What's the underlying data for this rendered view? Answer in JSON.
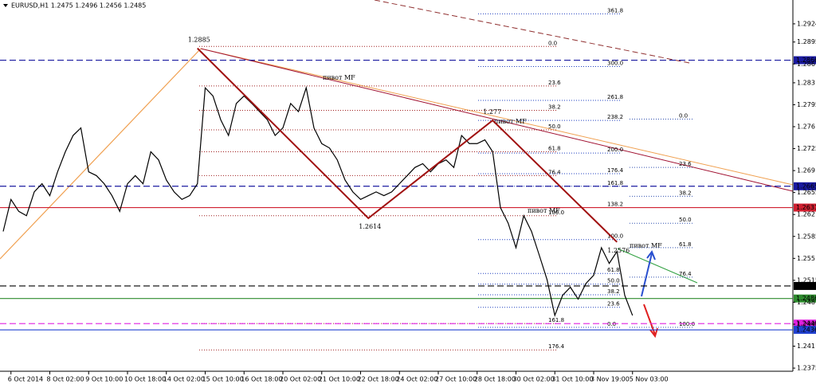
{
  "chart_data": {
    "type": "line",
    "title": "EURUSD,H1 1.2475 1.2496 1.2456 1.2485",
    "categories": [
      null,
      "6 Oct 2014",
      null,
      null,
      null,
      null,
      "8 Oct 02:00",
      null,
      null,
      null,
      null,
      "9 Oct 10:00",
      null,
      null,
      null,
      null,
      "10 Oct 18:00",
      null,
      null,
      null,
      null,
      "14 Oct 02:00",
      null,
      null,
      null,
      null,
      "15 Oct 10:00",
      null,
      null,
      null,
      null,
      "16 Oct 18:00",
      null,
      null,
      null,
      null,
      "20 Oct 02:00",
      null,
      null,
      null,
      null,
      "21 Oct 10:00",
      null,
      null,
      null,
      null,
      "22 Oct 18:00",
      null,
      null,
      null,
      null,
      "24 Oct 02:00",
      null,
      null,
      null,
      null,
      "27 Oct 10:00",
      null,
      null,
      null,
      null,
      "28 Oct 18:00",
      null,
      null,
      null,
      null,
      "30 Oct 02:00",
      null,
      null,
      null,
      null,
      "31 Oct 10:00",
      null,
      null,
      null,
      null,
      "3 Nov 19:00",
      null,
      null,
      null,
      null,
      "5 Nov 03:00"
    ],
    "series": [
      {
        "color": "#000000",
        "values": [
          1.2593,
          1.2644,
          1.2625,
          1.2618,
          1.2656,
          1.2669,
          1.265,
          1.2688,
          1.272,
          1.2746,
          1.2758,
          1.2688,
          1.2682,
          1.2669,
          1.265,
          1.2625,
          1.2669,
          1.2682,
          1.2669,
          1.272,
          1.2707,
          1.2675,
          1.2656,
          1.2644,
          1.265,
          1.2669,
          1.2822,
          1.2809,
          1.2771,
          1.2746,
          1.2797,
          1.2809,
          1.2797,
          1.2784,
          1.2771,
          1.2746,
          1.2758,
          1.2797,
          1.2784,
          1.2822,
          1.2758,
          1.2733,
          1.2726,
          1.2707,
          1.2675,
          1.2656,
          1.2644,
          1.265,
          1.2656,
          1.265,
          1.2656,
          1.2669,
          1.2682,
          1.2695,
          1.2701,
          1.2688,
          1.2701,
          1.2707,
          1.2695,
          1.2746,
          1.2733,
          1.2733,
          1.2739,
          1.272,
          1.2631,
          1.2606,
          1.2567,
          1.2618,
          1.2593,
          1.2555,
          1.2516,
          1.2459,
          1.2491,
          1.2504,
          1.2485,
          1.251,
          1.2523,
          1.2567,
          1.2542,
          1.2561,
          1.2491,
          1.2459
        ]
      }
    ],
    "ylim": [
      1.237,
      1.2962
    ],
    "yticks": [
      1.2924,
      1.2895,
      1.286,
      1.283,
      1.2795,
      1.276,
      1.2725,
      1.269,
      1.2655,
      1.262,
      1.2585,
      1.255,
      1.2515,
      1.248,
      1.2445,
      1.241,
      1.2375
    ],
    "price_lines": [
      {
        "value": 1.2866,
        "color": "#1a1aa0",
        "dash": true
      },
      {
        "value": 1.2665,
        "color": "#1a1aa0",
        "dash": true
      },
      {
        "value": 1.2631,
        "color": "#d02030",
        "dash": false
      },
      {
        "value": 1.2506,
        "color": "#000000",
        "dash": true
      },
      {
        "value": 1.2486,
        "color": "#2e8b2e",
        "dash": false
      },
      {
        "value": 1.2446,
        "color": "#e020e0",
        "dash": true
      },
      {
        "value": 1.2436,
        "color": "#2040d0",
        "dash": false
      }
    ],
    "zigzag": {
      "color": "#a01010",
      "x": [
        25,
        47,
        63,
        79
      ],
      "values": [
        1.2885,
        1.2614,
        1.277,
        1.2576
      ]
    },
    "pivot_labels": [
      "пивот MF",
      "пивот MF",
      "пивот MF",
      "пивот MF"
    ],
    "fibo": [
      {
        "color": "#a02020",
        "levels": [
          {
            "value": 1.2888,
            "label": "0.0"
          },
          {
            "value": 1.2825,
            "label": "23.6"
          },
          {
            "value": 1.2786,
            "label": "38.2"
          },
          {
            "value": 1.2755,
            "label": "50.0"
          },
          {
            "value": 1.272,
            "label": "61.8"
          },
          {
            "value": 1.2682,
            "label": "76.4"
          },
          {
            "value": 1.2618,
            "label": "100.0"
          },
          {
            "value": 1.2446,
            "label": "161.8"
          },
          {
            "value": 1.2404,
            "label": "176.4"
          }
        ]
      },
      {
        "color": "#2040c0",
        "levels": [
          {
            "value": 1.294,
            "label": "361.8"
          },
          {
            "value": 1.2856,
            "label": "300.0"
          },
          {
            "value": 1.2802,
            "label": "261.8"
          },
          {
            "value": 1.277,
            "label": "238.2"
          },
          {
            "value": 1.2718,
            "label": "200.0"
          },
          {
            "value": 1.2685,
            "label": "176.4"
          },
          {
            "value": 1.2665,
            "label": "161.8"
          },
          {
            "value": 1.2631,
            "label": "138.2"
          },
          {
            "value": 1.258,
            "label": "100.0"
          },
          {
            "value": 1.2526,
            "label": "61.8"
          },
          {
            "value": 1.2509,
            "label": "50.0"
          },
          {
            "value": 1.2492,
            "label": "38.2"
          },
          {
            "value": 1.2472,
            "label": "23.6"
          },
          {
            "value": 1.244,
            "label": "0.0"
          }
        ]
      },
      {
        "color": "#3050b0",
        "levels": [
          {
            "value": 1.2772,
            "label": "0.0"
          },
          {
            "value": 1.2695,
            "label": "23.6"
          },
          {
            "value": 1.2649,
            "label": "38.2"
          },
          {
            "value": 1.2606,
            "label": "50.0"
          },
          {
            "value": 1.2567,
            "label": "61.8"
          },
          {
            "value": 1.252,
            "label": "76.4"
          },
          {
            "value": 1.244,
            "label": "100.0"
          }
        ]
      }
    ]
  }
}
